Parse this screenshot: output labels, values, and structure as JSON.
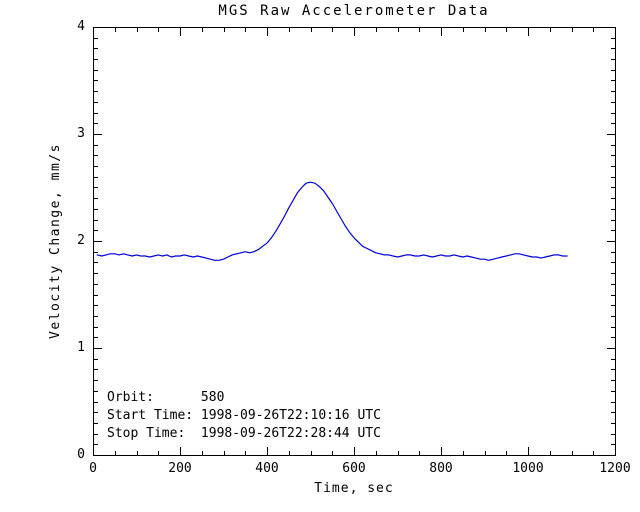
{
  "window": {
    "title": "MGS Raw Accelerometer Data"
  },
  "colors": {
    "line": "#0000e0",
    "frame": "#000000",
    "text": "#000000",
    "background": "#ffffff"
  },
  "chart_data": {
    "type": "line",
    "title": "MGS Raw Accelerometer Data",
    "xlabel": "Time, sec",
    "ylabel": "Velocity Change, mm/s",
    "xlim": [
      0,
      1200
    ],
    "ylim": [
      0,
      4
    ],
    "x_major_ticks": [
      0,
      200,
      400,
      600,
      800,
      1000,
      1200
    ],
    "x_minor_step": 50,
    "y_major_ticks": [
      0,
      1,
      2,
      3,
      4
    ],
    "y_minor_step": 0.1,
    "grid": false,
    "legend": null,
    "frame_box": true,
    "annotations": [
      "Orbit:      580",
      "Start Time: 1998-09-26T22:10:16 UTC",
      "Stop Time:  1998-09-26T22:28:44 UTC"
    ],
    "series": [
      {
        "name": "velocity-change",
        "color": "#0000e0",
        "x": [
          10,
          20,
          30,
          40,
          50,
          60,
          70,
          80,
          90,
          100,
          110,
          120,
          130,
          140,
          150,
          160,
          170,
          180,
          190,
          200,
          210,
          220,
          230,
          240,
          250,
          260,
          270,
          280,
          290,
          300,
          310,
          320,
          330,
          340,
          350,
          360,
          370,
          380,
          390,
          400,
          410,
          420,
          430,
          440,
          450,
          460,
          470,
          480,
          490,
          500,
          510,
          520,
          530,
          540,
          550,
          560,
          570,
          580,
          590,
          600,
          610,
          620,
          630,
          640,
          650,
          660,
          670,
          680,
          690,
          700,
          710,
          720,
          730,
          740,
          750,
          760,
          770,
          780,
          790,
          800,
          810,
          820,
          830,
          840,
          850,
          860,
          870,
          880,
          890,
          900,
          910,
          920,
          930,
          940,
          950,
          960,
          970,
          980,
          990,
          1000,
          1010,
          1020,
          1030,
          1040,
          1050,
          1060,
          1070,
          1080,
          1090
        ],
        "y": [
          1.87,
          1.86,
          1.87,
          1.88,
          1.88,
          1.87,
          1.88,
          1.87,
          1.86,
          1.87,
          1.86,
          1.86,
          1.85,
          1.86,
          1.87,
          1.86,
          1.87,
          1.85,
          1.86,
          1.86,
          1.87,
          1.86,
          1.85,
          1.86,
          1.85,
          1.84,
          1.83,
          1.82,
          1.82,
          1.83,
          1.85,
          1.87,
          1.88,
          1.89,
          1.9,
          1.89,
          1.9,
          1.92,
          1.95,
          1.98,
          2.03,
          2.09,
          2.16,
          2.23,
          2.31,
          2.38,
          2.45,
          2.5,
          2.54,
          2.55,
          2.54,
          2.51,
          2.47,
          2.41,
          2.35,
          2.28,
          2.21,
          2.14,
          2.08,
          2.03,
          1.99,
          1.95,
          1.93,
          1.91,
          1.89,
          1.88,
          1.87,
          1.87,
          1.86,
          1.85,
          1.86,
          1.87,
          1.87,
          1.86,
          1.86,
          1.87,
          1.86,
          1.85,
          1.86,
          1.87,
          1.86,
          1.86,
          1.87,
          1.86,
          1.85,
          1.86,
          1.85,
          1.84,
          1.83,
          1.83,
          1.82,
          1.83,
          1.84,
          1.85,
          1.86,
          1.87,
          1.88,
          1.88,
          1.87,
          1.86,
          1.85,
          1.85,
          1.84,
          1.85,
          1.86,
          1.87,
          1.87,
          1.86,
          1.86
        ]
      }
    ]
  }
}
